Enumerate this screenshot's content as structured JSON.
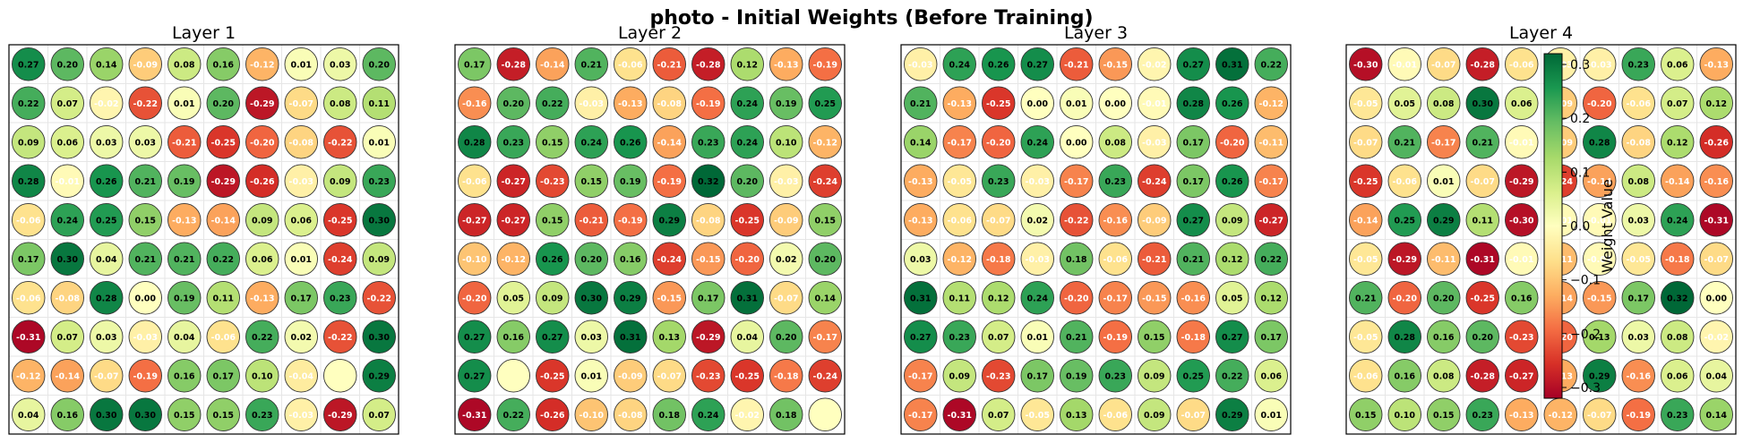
{
  "title": "photo - Initial Weights (Before Training)",
  "chart_data": [
    {
      "type": "heatmap",
      "title": "Layer 1",
      "rows": 10,
      "cols": 10,
      "values": [
        [
          0.27,
          0.2,
          0.14,
          -0.09,
          0.08,
          0.16,
          -0.12,
          0.01,
          0.03,
          0.2
        ],
        [
          0.22,
          0.07,
          -0.02,
          -0.22,
          0.01,
          0.2,
          -0.29,
          -0.07,
          0.08,
          0.11
        ],
        [
          0.09,
          0.06,
          0.03,
          0.03,
          -0.21,
          -0.25,
          -0.2,
          -0.08,
          -0.22,
          0.01
        ],
        [
          0.28,
          -0.01,
          0.26,
          0.21,
          0.19,
          -0.29,
          -0.26,
          -0.03,
          0.09,
          0.23
        ],
        [
          -0.06,
          0.24,
          0.25,
          0.15,
          -0.13,
          -0.14,
          0.09,
          0.06,
          -0.25,
          0.3
        ],
        [
          0.17,
          0.3,
          0.04,
          0.21,
          0.21,
          0.22,
          0.06,
          0.01,
          -0.24,
          0.09
        ],
        [
          -0.06,
          -0.08,
          0.28,
          0.0,
          0.19,
          0.11,
          -0.13,
          0.17,
          0.23,
          -0.22
        ],
        [
          -0.31,
          0.07,
          0.03,
          -0.03,
          0.04,
          -0.06,
          0.22,
          0.02,
          -0.22,
          0.3
        ],
        [
          -0.12,
          -0.14,
          -0.07,
          -0.19,
          0.16,
          0.17,
          0.1,
          -0.04,
          null,
          0.29
        ],
        [
          0.04,
          0.16,
          0.3,
          0.3,
          0.15,
          0.15,
          0.23,
          -0.03,
          -0.29,
          0.07
        ]
      ]
    },
    {
      "type": "heatmap",
      "title": "Layer 2",
      "rows": 10,
      "cols": 10,
      "values": [
        [
          0.17,
          -0.28,
          -0.14,
          0.21,
          -0.06,
          -0.21,
          -0.28,
          0.12,
          -0.13,
          -0.19
        ],
        [
          -0.16,
          0.2,
          0.22,
          -0.03,
          -0.13,
          -0.08,
          -0.19,
          0.24,
          0.19,
          0.25
        ],
        [
          0.28,
          0.23,
          0.15,
          0.24,
          0.26,
          -0.14,
          0.23,
          0.24,
          0.1,
          -0.12
        ],
        [
          -0.06,
          -0.27,
          -0.23,
          0.15,
          0.19,
          -0.19,
          0.32,
          0.2,
          -0.03,
          -0.24
        ],
        [
          -0.27,
          -0.27,
          0.15,
          -0.21,
          -0.19,
          0.29,
          -0.08,
          -0.25,
          -0.09,
          0.15
        ],
        [
          -0.1,
          -0.12,
          0.26,
          0.2,
          0.16,
          -0.24,
          -0.15,
          -0.2,
          0.02,
          0.2
        ],
        [
          -0.2,
          0.05,
          0.09,
          0.3,
          0.29,
          -0.15,
          0.17,
          0.31,
          -0.07,
          0.14
        ],
        [
          0.27,
          0.16,
          0.27,
          0.03,
          0.31,
          0.13,
          -0.29,
          0.04,
          0.2,
          -0.17
        ],
        [
          0.27,
          null,
          -0.25,
          0.01,
          -0.09,
          -0.07,
          -0.23,
          -0.25,
          -0.18,
          -0.24
        ],
        [
          -0.31,
          0.22,
          -0.26,
          -0.1,
          -0.08,
          0.18,
          0.24,
          -0.02,
          0.18,
          null
        ]
      ]
    },
    {
      "type": "heatmap",
      "title": "Layer 3",
      "rows": 10,
      "cols": 10,
      "values": [
        [
          -0.03,
          0.24,
          0.26,
          0.27,
          -0.21,
          -0.15,
          -0.02,
          0.27,
          0.31,
          0.22
        ],
        [
          0.21,
          -0.13,
          -0.25,
          0.0,
          0.01,
          0.0,
          -0.01,
          0.28,
          0.26,
          -0.12
        ],
        [
          0.14,
          -0.17,
          -0.2,
          0.24,
          0.0,
          0.08,
          -0.03,
          0.17,
          -0.2,
          -0.11
        ],
        [
          -0.13,
          -0.05,
          0.23,
          -0.03,
          -0.17,
          0.23,
          -0.24,
          0.17,
          0.26,
          -0.17
        ],
        [
          -0.13,
          -0.06,
          -0.07,
          0.02,
          -0.22,
          -0.16,
          -0.09,
          0.27,
          0.09,
          -0.27
        ],
        [
          0.03,
          -0.12,
          -0.18,
          -0.03,
          0.18,
          -0.06,
          -0.21,
          0.21,
          0.12,
          0.22
        ],
        [
          0.31,
          0.11,
          0.12,
          0.24,
          -0.2,
          -0.17,
          -0.15,
          -0.16,
          0.05,
          0.12
        ],
        [
          0.27,
          0.23,
          0.07,
          0.01,
          0.21,
          -0.19,
          0.15,
          -0.18,
          0.27,
          0.17
        ],
        [
          -0.17,
          0.09,
          -0.23,
          0.17,
          0.19,
          0.23,
          0.09,
          0.25,
          0.22,
          0.06
        ],
        [
          -0.17,
          -0.31,
          0.07,
          -0.05,
          0.13,
          -0.06,
          0.09,
          -0.07,
          0.29,
          0.01
        ]
      ]
    },
    {
      "type": "heatmap",
      "title": "Layer 4",
      "rows": 10,
      "cols": 10,
      "values": [
        [
          -0.3,
          -0.01,
          -0.07,
          -0.28,
          -0.06,
          -0.03,
          -0.03,
          0.23,
          0.06,
          -0.13
        ],
        [
          -0.05,
          0.05,
          0.08,
          0.3,
          0.06,
          -0.09,
          -0.2,
          -0.06,
          0.07,
          0.12
        ],
        [
          -0.07,
          0.21,
          -0.17,
          0.21,
          -0.01,
          -0.09,
          0.28,
          -0.08,
          0.12,
          -0.26
        ],
        [
          -0.25,
          -0.06,
          0.01,
          -0.07,
          -0.29,
          -0.24,
          -0.14,
          0.08,
          -0.14,
          -0.16
        ],
        [
          -0.14,
          0.25,
          0.29,
          0.11,
          -0.3,
          -0.01,
          -0.01,
          0.03,
          0.24,
          -0.31
        ],
        [
          -0.05,
          -0.29,
          -0.11,
          -0.31,
          -0.01,
          -0.11,
          -0.01,
          -0.05,
          -0.18,
          -0.07
        ],
        [
          0.21,
          -0.2,
          0.2,
          -0.25,
          0.16,
          -0.14,
          -0.15,
          0.17,
          0.32,
          0.0
        ],
        [
          -0.05,
          0.28,
          0.16,
          0.2,
          -0.23,
          -0.2,
          0.13,
          0.03,
          0.08,
          -0.02
        ],
        [
          -0.06,
          0.16,
          0.08,
          -0.28,
          -0.27,
          -0.13,
          0.29,
          -0.16,
          0.06,
          0.04
        ],
        [
          0.15,
          0.1,
          0.15,
          0.23,
          -0.13,
          -0.12,
          -0.07,
          -0.19,
          0.23,
          0.14
        ]
      ]
    }
  ],
  "colorbar": {
    "label": "Weight Value",
    "ticks": [
      0.3,
      0.2,
      0.1,
      0.0,
      -0.1,
      -0.2,
      -0.3
    ],
    "tick_labels": [
      "0.3",
      "0.2",
      "0.1",
      "0.0",
      "−0.1",
      "−0.2",
      "−0.3"
    ],
    "range": [
      -0.32,
      0.32
    ],
    "colormap": "RdYlGn"
  }
}
